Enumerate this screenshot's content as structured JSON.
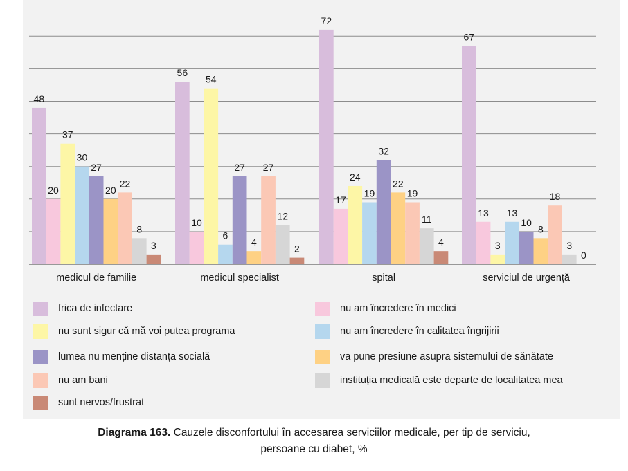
{
  "chart_data": {
    "type": "bar",
    "categories": [
      "medicul de familie",
      "medicul specialist",
      "spital",
      "serviciul de urgență"
    ],
    "series": [
      {
        "name": "frica de infectare",
        "color": "#d8bddc",
        "values": [
          48,
          56,
          72,
          67
        ]
      },
      {
        "name": "nu am încredere în medici",
        "color": "#f8c8dd",
        "values": [
          20,
          10,
          17,
          13
        ]
      },
      {
        "name": "nu sunt sigur că mă voi putea programa",
        "color": "#fdf6a6",
        "values": [
          37,
          54,
          24,
          3
        ]
      },
      {
        "name": "nu am încredere în calitatea îngrijirii",
        "color": "#b5d7ee",
        "values": [
          30,
          6,
          19,
          13
        ]
      },
      {
        "name": "lumea nu menține distanța socială",
        "color": "#9b94c6",
        "values": [
          27,
          27,
          32,
          10
        ]
      },
      {
        "name": "va pune presiune asupra sistemului de sănătate",
        "color": "#fed184",
        "values": [
          20,
          4,
          22,
          8
        ]
      },
      {
        "name": "nu am bani",
        "color": "#fbc8b5",
        "values": [
          22,
          27,
          19,
          18
        ]
      },
      {
        "name": "instituția medicală este departe de localitatea mea",
        "color": "#d6d6d6",
        "values": [
          8,
          12,
          11,
          3
        ]
      },
      {
        "name": "sunt nervos/frustrat",
        "color": "#c98976",
        "values": [
          3,
          2,
          4,
          0
        ]
      }
    ],
    "ylim": [
      0,
      72
    ],
    "grid": true,
    "legend": "bottom"
  },
  "caption": {
    "label": "Diagrama 163.",
    "text": " Cauzele disconfortului în accesarea serviciilor medicale, per tip de serviciu,",
    "line2": "persoane cu diabet, %"
  }
}
